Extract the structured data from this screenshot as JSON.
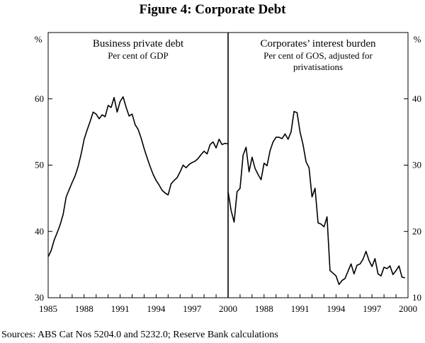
{
  "figure": {
    "title": "Figure 4: Corporate Debt",
    "sources": "Sources:  ABS Cat Nos 5204.0 and 5232.0; Reserve Bank calculations"
  },
  "chart_data": [
    {
      "type": "line",
      "title": "Business private debt",
      "subtitle": "Per cent of GDP",
      "unit": "%",
      "y_axis_side": "left",
      "xlim": [
        1985,
        2000
      ],
      "ylim": [
        30,
        70
      ],
      "y_ticks": [
        "30",
        "40",
        "50",
        "60"
      ],
      "x_ticks": [
        "1985",
        "1988",
        "1991",
        "1994",
        "1997",
        "2000"
      ],
      "grid": false,
      "series": [
        {
          "color": "#000000",
          "points": [
            [
              1985.0,
              36.2
            ],
            [
              1985.25,
              37.1
            ],
            [
              1985.5,
              38.7
            ],
            [
              1985.75,
              39.8
            ],
            [
              1986.0,
              41.0
            ],
            [
              1986.25,
              42.6
            ],
            [
              1986.5,
              45.2
            ],
            [
              1986.75,
              46.3
            ],
            [
              1987.0,
              47.4
            ],
            [
              1987.25,
              48.4
            ],
            [
              1987.5,
              49.8
            ],
            [
              1987.75,
              51.7
            ],
            [
              1988.0,
              53.9
            ],
            [
              1988.25,
              55.3
            ],
            [
              1988.5,
              56.6
            ],
            [
              1988.75,
              58.0
            ],
            [
              1989.0,
              57.7
            ],
            [
              1989.25,
              57.0
            ],
            [
              1989.5,
              57.6
            ],
            [
              1989.75,
              57.3
            ],
            [
              1990.0,
              59.0
            ],
            [
              1990.25,
              58.7
            ],
            [
              1990.5,
              60.2
            ],
            [
              1990.75,
              58.0
            ],
            [
              1991.0,
              59.6
            ],
            [
              1991.25,
              60.3
            ],
            [
              1991.5,
              58.7
            ],
            [
              1991.75,
              57.4
            ],
            [
              1992.0,
              57.7
            ],
            [
              1992.25,
              56.1
            ],
            [
              1992.5,
              55.4
            ],
            [
              1992.75,
              54.1
            ],
            [
              1993.0,
              52.5
            ],
            [
              1993.25,
              51.1
            ],
            [
              1993.5,
              49.8
            ],
            [
              1993.75,
              48.6
            ],
            [
              1994.0,
              47.7
            ],
            [
              1994.25,
              47.0
            ],
            [
              1994.5,
              46.2
            ],
            [
              1994.75,
              45.8
            ],
            [
              1995.0,
              45.5
            ],
            [
              1995.25,
              47.2
            ],
            [
              1995.5,
              47.7
            ],
            [
              1995.75,
              48.1
            ],
            [
              1996.0,
              49.0
            ],
            [
              1996.25,
              50.0
            ],
            [
              1996.5,
              49.6
            ],
            [
              1996.75,
              50.1
            ],
            [
              1997.0,
              50.4
            ],
            [
              1997.25,
              50.6
            ],
            [
              1997.5,
              51.0
            ],
            [
              1997.75,
              51.6
            ],
            [
              1998.0,
              52.1
            ],
            [
              1998.25,
              51.7
            ],
            [
              1998.5,
              53.1
            ],
            [
              1998.75,
              53.5
            ],
            [
              1999.0,
              52.6
            ],
            [
              1999.25,
              53.9
            ],
            [
              1999.5,
              53.1
            ],
            [
              1999.75,
              53.3
            ],
            [
              2000.0,
              53.2
            ]
          ]
        }
      ]
    },
    {
      "type": "line",
      "title": "Corporates’ interest burden",
      "subtitle": "Per cent of GOS, adjusted for privatisations",
      "subtitle_lines": [
        "Per cent of GOS, adjusted for",
        "privatisations"
      ],
      "unit": "%",
      "y_axis_side": "right",
      "xlim": [
        1985,
        2000
      ],
      "ylim": [
        10,
        50
      ],
      "y_ticks": [
        "10",
        "20",
        "30",
        "40"
      ],
      "x_ticks": [
        "1988",
        "1991",
        "1994",
        "1997",
        "2000"
      ],
      "grid": false,
      "series": [
        {
          "color": "#000000",
          "points": [
            [
              1985.0,
              26.0
            ],
            [
              1985.25,
              23.2
            ],
            [
              1985.5,
              21.4
            ],
            [
              1985.75,
              26.0
            ],
            [
              1986.0,
              26.5
            ],
            [
              1986.25,
              31.5
            ],
            [
              1986.5,
              32.7
            ],
            [
              1986.75,
              29.0
            ],
            [
              1987.0,
              31.2
            ],
            [
              1987.25,
              29.5
            ],
            [
              1987.5,
              28.6
            ],
            [
              1987.75,
              27.8
            ],
            [
              1988.0,
              30.3
            ],
            [
              1988.25,
              29.9
            ],
            [
              1988.5,
              32.2
            ],
            [
              1988.75,
              33.5
            ],
            [
              1989.0,
              34.2
            ],
            [
              1989.25,
              34.2
            ],
            [
              1989.5,
              34.0
            ],
            [
              1989.75,
              34.7
            ],
            [
              1990.0,
              33.9
            ],
            [
              1990.25,
              35.0
            ],
            [
              1990.5,
              38.1
            ],
            [
              1990.75,
              37.9
            ],
            [
              1991.0,
              35.0
            ],
            [
              1991.25,
              33.1
            ],
            [
              1991.5,
              30.5
            ],
            [
              1991.75,
              29.6
            ],
            [
              1992.0,
              25.2
            ],
            [
              1992.25,
              26.5
            ],
            [
              1992.5,
              21.3
            ],
            [
              1992.75,
              21.1
            ],
            [
              1993.0,
              20.7
            ],
            [
              1993.25,
              22.2
            ],
            [
              1993.5,
              14.1
            ],
            [
              1993.75,
              13.7
            ],
            [
              1994.0,
              13.3
            ],
            [
              1994.25,
              12.0
            ],
            [
              1994.5,
              12.6
            ],
            [
              1994.75,
              12.9
            ],
            [
              1995.0,
              14.0
            ],
            [
              1995.25,
              15.1
            ],
            [
              1995.5,
              13.6
            ],
            [
              1995.75,
              14.9
            ],
            [
              1996.0,
              15.1
            ],
            [
              1996.25,
              15.8
            ],
            [
              1996.5,
              17.0
            ],
            [
              1996.75,
              15.6
            ],
            [
              1997.0,
              14.7
            ],
            [
              1997.25,
              15.9
            ],
            [
              1997.5,
              13.6
            ],
            [
              1997.75,
              13.3
            ],
            [
              1998.0,
              14.6
            ],
            [
              1998.25,
              14.4
            ],
            [
              1998.5,
              14.8
            ],
            [
              1998.75,
              13.5
            ],
            [
              1999.0,
              14.1
            ],
            [
              1999.25,
              14.8
            ],
            [
              1999.5,
              13.1
            ],
            [
              1999.75,
              13.0
            ]
          ]
        }
      ]
    }
  ]
}
